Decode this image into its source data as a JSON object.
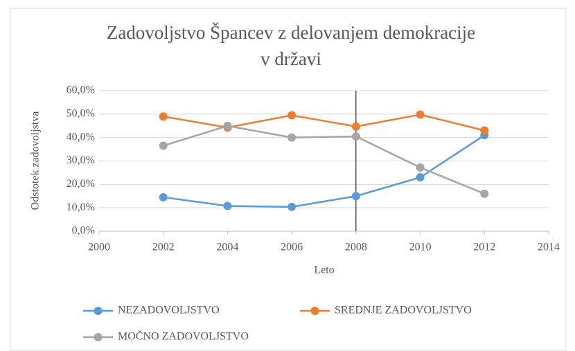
{
  "chart_data": {
    "type": "line",
    "title": "Zadovoljstvo Špancev z delovanjem demokracije",
    "subtitle": "v državi",
    "xlabel": "Leto",
    "ylabel": "Odstotek zadovoljstva",
    "x": [
      2002,
      2004,
      2006,
      2008,
      2010,
      2012
    ],
    "series": [
      {
        "name": "NEZADOVOLJSTVO",
        "color": "#5b9bd5",
        "values": [
          14.5,
          10.8,
          10.4,
          15,
          23,
          41
        ]
      },
      {
        "name": "SREDNJE ZADOVOLJSTVO",
        "color": "#ed7d31",
        "values": [
          49,
          44.3,
          49.5,
          44.7,
          49.8,
          43
        ]
      },
      {
        "name": "MOČNO ZADOVOLJSTVO",
        "color": "#a5a5a5",
        "values": [
          36.5,
          45,
          40,
          40.5,
          27.2,
          16
        ]
      }
    ],
    "xlim": [
      2000,
      2014
    ],
    "xticks": [
      2000,
      2002,
      2004,
      2006,
      2008,
      2010,
      2012,
      2014
    ],
    "ylim": [
      0,
      60
    ],
    "yticks": [
      {
        "value": 0,
        "label": "0,0%"
      },
      {
        "value": 10,
        "label": "10,0%"
      },
      {
        "value": 20,
        "label": "20,0%"
      },
      {
        "value": 30,
        "label": "30,0%"
      },
      {
        "value": 40,
        "label": "40,0%"
      },
      {
        "value": 50,
        "label": "50,0%"
      },
      {
        "value": 60,
        "label": "60,0%"
      }
    ],
    "reference_line_x": 2008,
    "grid": true,
    "legend": "bottom"
  }
}
